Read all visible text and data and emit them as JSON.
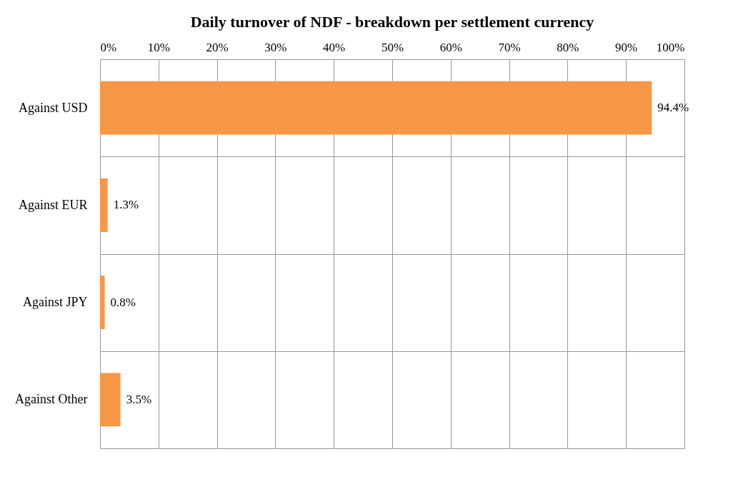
{
  "chart_data": {
    "type": "bar",
    "orientation": "horizontal",
    "title": "Daily turnover of NDF - breakdown per settlement currency",
    "categories": [
      "Against USD",
      "Against EUR",
      "Against JPY",
      "Against Other"
    ],
    "values": [
      94.4,
      1.3,
      0.8,
      3.5
    ],
    "value_labels": [
      "94.4%",
      "1.3%",
      "0.8%",
      "3.5%"
    ],
    "color": "#f79646",
    "xlim": [
      0,
      100
    ],
    "xticks": [
      {
        "value": 0,
        "label": "0%"
      },
      {
        "value": 10,
        "label": "10%"
      },
      {
        "value": 20,
        "label": "20%"
      },
      {
        "value": 30,
        "label": "30%"
      },
      {
        "value": 40,
        "label": "40%"
      },
      {
        "value": 50,
        "label": "50%"
      },
      {
        "value": 60,
        "label": "60%"
      },
      {
        "value": 70,
        "label": "70%"
      },
      {
        "value": 80,
        "label": "80%"
      },
      {
        "value": 90,
        "label": "90%"
      },
      {
        "value": 100,
        "label": "100%"
      }
    ],
    "grid": true
  }
}
